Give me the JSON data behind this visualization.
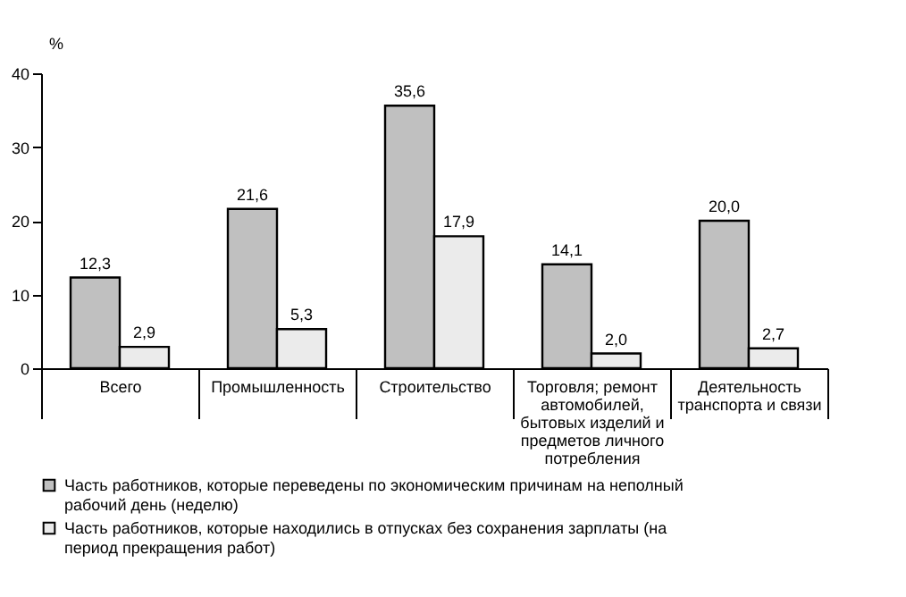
{
  "chart_data": {
    "type": "bar",
    "ylabel": "%",
    "categories": [
      "Всего",
      "Промышленность",
      "Строительство",
      "Торговля; ремонт автомобилей, бытовых изделий и предметов личного потребления",
      "Деятельность транспорта и связи"
    ],
    "series": [
      {
        "name": "Часть работников, которые переведены по экономическим причинам на неполный рабочий день (неделю)",
        "color": "#c0c0c0",
        "values": [
          12.3,
          21.6,
          35.6,
          14.1,
          20.0
        ],
        "value_labels": [
          "12,3",
          "21,6",
          "35,6",
          "14,1",
          "20,0"
        ]
      },
      {
        "name": "Часть работников, которые находились в отпусках без сохранения зарплаты (на период прекращения работ)",
        "color": "#ebebeb",
        "values": [
          2.9,
          5.3,
          17.9,
          2.0,
          2.7
        ],
        "value_labels": [
          "2,9",
          "5,3",
          "17,9",
          "2,0",
          "2,7"
        ]
      }
    ],
    "ylim": [
      0,
      40
    ],
    "yticks": [
      0,
      10,
      20,
      30,
      40
    ],
    "grid": false,
    "legend": "bottom"
  }
}
